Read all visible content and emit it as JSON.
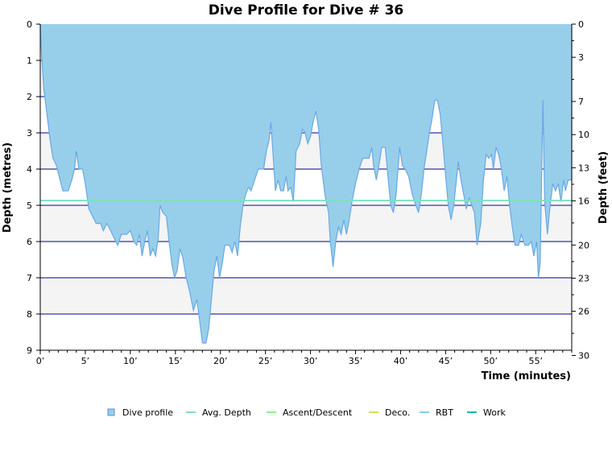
{
  "chart_data": {
    "type": "area",
    "title": "Dive Profile for Dive # 36",
    "xlabel": "Time (minutes)",
    "ylabel_left": "Depth (metres)",
    "ylabel_right": "Depth (feet)",
    "xlim": [
      0,
      59
    ],
    "ylim": [
      0,
      9
    ],
    "y_inverted": true,
    "x_ticks": [
      0,
      5,
      10,
      15,
      20,
      25,
      30,
      35,
      40,
      45,
      50,
      55
    ],
    "x_tick_labels": [
      "0’",
      "5’",
      "10’",
      "15’",
      "20’",
      "25’",
      "30’",
      "35’",
      "40’",
      "45’",
      "50’",
      "55’"
    ],
    "y_left_ticks": [
      0,
      1,
      2,
      3,
      4,
      5,
      6,
      7,
      8,
      9
    ],
    "y_left_tick_labels": [
      "0",
      "1",
      "2",
      "3",
      "4",
      "5",
      "6",
      "7",
      "8",
      "9"
    ],
    "y_right_ticks": [
      0,
      3,
      7,
      10,
      13,
      16,
      20,
      23,
      26,
      30
    ],
    "y_right_tick_labels": [
      "0",
      "3",
      "7",
      "10",
      "13",
      "16",
      "20",
      "23",
      "26",
      "30"
    ],
    "avg_depth": 4.87,
    "colors": {
      "fill": "#97cfea",
      "line": "#6aa8e6",
      "band": "#f4f4f4",
      "grid": "#00008b",
      "avg_depth": "#7fe0c0",
      "ascent": "#90ee90",
      "deco": "#d4e157",
      "rbt": "#87ceeb",
      "work": "#20b2aa"
    },
    "series": [
      {
        "name": "Dive profile",
        "points": [
          [
            0,
            0
          ],
          [
            0.15,
            0.9
          ],
          [
            0.4,
            1.8
          ],
          [
            0.8,
            2.6
          ],
          [
            1.1,
            3.2
          ],
          [
            1.4,
            3.7
          ],
          [
            1.8,
            3.9
          ],
          [
            2.2,
            4.3
          ],
          [
            2.5,
            4.6
          ],
          [
            3.1,
            4.6
          ],
          [
            3.5,
            4.3
          ],
          [
            3.8,
            4.0
          ],
          [
            4.0,
            3.5
          ],
          [
            4.3,
            4.0
          ],
          [
            4.7,
            4.0
          ],
          [
            5.0,
            4.4
          ],
          [
            5.4,
            5.1
          ],
          [
            5.8,
            5.3
          ],
          [
            6.2,
            5.5
          ],
          [
            6.7,
            5.5
          ],
          [
            7.0,
            5.7
          ],
          [
            7.4,
            5.5
          ],
          [
            7.8,
            5.7
          ],
          [
            8.2,
            5.9
          ],
          [
            8.6,
            6.1
          ],
          [
            9.0,
            5.8
          ],
          [
            9.6,
            5.8
          ],
          [
            10.0,
            5.7
          ],
          [
            10.4,
            6.0
          ],
          [
            10.7,
            6.1
          ],
          [
            11.0,
            5.8
          ],
          [
            11.3,
            6.4
          ],
          [
            11.6,
            6.0
          ],
          [
            11.9,
            5.7
          ],
          [
            12.2,
            6.4
          ],
          [
            12.5,
            6.2
          ],
          [
            12.8,
            6.4
          ],
          [
            13.1,
            5.9
          ],
          [
            13.3,
            5.0
          ],
          [
            13.6,
            5.2
          ],
          [
            14.0,
            5.3
          ],
          [
            14.3,
            6.0
          ],
          [
            14.6,
            6.6
          ],
          [
            14.9,
            7.0
          ],
          [
            15.2,
            6.8
          ],
          [
            15.5,
            6.2
          ],
          [
            15.8,
            6.4
          ],
          [
            16.2,
            7.0
          ],
          [
            16.6,
            7.4
          ],
          [
            17.0,
            7.9
          ],
          [
            17.4,
            7.6
          ],
          [
            17.7,
            8.2
          ],
          [
            18.0,
            8.8
          ],
          [
            18.4,
            8.8
          ],
          [
            18.7,
            8.4
          ],
          [
            19.0,
            7.6
          ],
          [
            19.3,
            6.8
          ],
          [
            19.6,
            6.4
          ],
          [
            19.9,
            7.0
          ],
          [
            20.2,
            6.6
          ],
          [
            20.5,
            6.1
          ],
          [
            21.0,
            6.1
          ],
          [
            21.3,
            6.3
          ],
          [
            21.6,
            6.0
          ],
          [
            21.9,
            6.4
          ],
          [
            22.2,
            5.6
          ],
          [
            22.5,
            5.0
          ],
          [
            22.8,
            4.7
          ],
          [
            23.1,
            4.5
          ],
          [
            23.4,
            4.6
          ],
          [
            23.8,
            4.3
          ],
          [
            24.2,
            4.0
          ],
          [
            24.8,
            4.0
          ],
          [
            25.1,
            3.5
          ],
          [
            25.4,
            3.2
          ],
          [
            25.6,
            2.7
          ],
          [
            25.9,
            3.8
          ],
          [
            26.1,
            4.6
          ],
          [
            26.4,
            4.3
          ],
          [
            26.7,
            4.6
          ],
          [
            27.0,
            4.6
          ],
          [
            27.3,
            4.2
          ],
          [
            27.5,
            4.6
          ],
          [
            27.8,
            4.5
          ],
          [
            28.1,
            4.9
          ],
          [
            28.4,
            3.5
          ],
          [
            28.8,
            3.3
          ],
          [
            29.1,
            2.9
          ],
          [
            29.4,
            3.0
          ],
          [
            29.7,
            3.3
          ],
          [
            30.0,
            3.1
          ],
          [
            30.3,
            2.7
          ],
          [
            30.6,
            2.4
          ],
          [
            30.9,
            2.9
          ],
          [
            31.2,
            3.9
          ],
          [
            31.6,
            4.7
          ],
          [
            32.0,
            5.2
          ],
          [
            32.2,
            6.0
          ],
          [
            32.5,
            6.7
          ],
          [
            32.8,
            6.0
          ],
          [
            33.1,
            5.6
          ],
          [
            33.4,
            5.8
          ],
          [
            33.7,
            5.4
          ],
          [
            34.0,
            5.8
          ],
          [
            34.3,
            5.4
          ],
          [
            34.6,
            4.9
          ],
          [
            35.0,
            4.4
          ],
          [
            35.4,
            4.0
          ],
          [
            35.8,
            3.7
          ],
          [
            36.5,
            3.7
          ],
          [
            36.8,
            3.4
          ],
          [
            37.0,
            3.9
          ],
          [
            37.3,
            4.3
          ],
          [
            37.6,
            3.9
          ],
          [
            37.9,
            3.4
          ],
          [
            38.3,
            3.4
          ],
          [
            38.6,
            4.2
          ],
          [
            38.9,
            5.0
          ],
          [
            39.2,
            5.2
          ],
          [
            39.5,
            4.7
          ],
          [
            39.9,
            3.4
          ],
          [
            40.2,
            3.9
          ],
          [
            40.5,
            4.0
          ],
          [
            40.9,
            4.2
          ],
          [
            41.3,
            4.7
          ],
          [
            41.7,
            5.0
          ],
          [
            42.0,
            5.2
          ],
          [
            42.3,
            4.7
          ],
          [
            42.6,
            4.0
          ],
          [
            42.9,
            3.5
          ],
          [
            43.2,
            3.0
          ],
          [
            43.5,
            2.6
          ],
          [
            43.8,
            2.1
          ],
          [
            44.1,
            2.1
          ],
          [
            44.4,
            2.5
          ],
          [
            44.7,
            3.3
          ],
          [
            45.0,
            4.2
          ],
          [
            45.3,
            5.0
          ],
          [
            45.6,
            5.4
          ],
          [
            45.9,
            5.0
          ],
          [
            46.2,
            4.3
          ],
          [
            46.4,
            3.8
          ],
          [
            46.7,
            4.3
          ],
          [
            47.0,
            4.7
          ],
          [
            47.3,
            5.1
          ],
          [
            47.6,
            4.8
          ],
          [
            47.9,
            5.0
          ],
          [
            48.2,
            5.2
          ],
          [
            48.5,
            6.1
          ],
          [
            48.9,
            5.5
          ],
          [
            49.2,
            4.3
          ],
          [
            49.5,
            3.6
          ],
          [
            49.8,
            3.7
          ],
          [
            50.1,
            3.6
          ],
          [
            50.3,
            4.0
          ],
          [
            50.6,
            3.4
          ],
          [
            50.9,
            3.6
          ],
          [
            51.2,
            4.0
          ],
          [
            51.5,
            4.6
          ],
          [
            51.8,
            4.2
          ],
          [
            52.1,
            5.0
          ],
          [
            52.4,
            5.6
          ],
          [
            52.7,
            6.1
          ],
          [
            53.1,
            6.1
          ],
          [
            53.4,
            5.8
          ],
          [
            53.8,
            6.1
          ],
          [
            54.2,
            6.1
          ],
          [
            54.5,
            6.0
          ],
          [
            54.8,
            6.4
          ],
          [
            55.1,
            6.0
          ],
          [
            55.3,
            7.0
          ],
          [
            55.5,
            6.6
          ],
          [
            55.8,
            2.1
          ],
          [
            56.0,
            4.9
          ],
          [
            56.3,
            5.8
          ],
          [
            56.6,
            5.0
          ],
          [
            56.9,
            4.4
          ],
          [
            57.2,
            4.6
          ],
          [
            57.5,
            4.4
          ],
          [
            57.8,
            4.9
          ],
          [
            58.1,
            4.3
          ],
          [
            58.3,
            4.6
          ],
          [
            58.6,
            4.3
          ],
          [
            59.0,
            4.3
          ],
          [
            59.3,
            2.0
          ],
          [
            59.6,
            0
          ]
        ]
      }
    ],
    "legend": {
      "placement": "bottom",
      "items": [
        {
          "label": "Dive profile",
          "style": "box",
          "color": "#97cfea"
        },
        {
          "label": "Avg. Depth",
          "style": "line",
          "color": "#7fe0c0"
        },
        {
          "label": "Ascent/Descent",
          "style": "line",
          "color": "#90ee90"
        },
        {
          "label": "Deco.",
          "style": "line",
          "color": "#d4e157"
        },
        {
          "label": "RBT",
          "style": "line",
          "color": "#87ceeb"
        },
        {
          "label": "Work",
          "style": "line",
          "color": "#20b2aa"
        }
      ]
    }
  }
}
